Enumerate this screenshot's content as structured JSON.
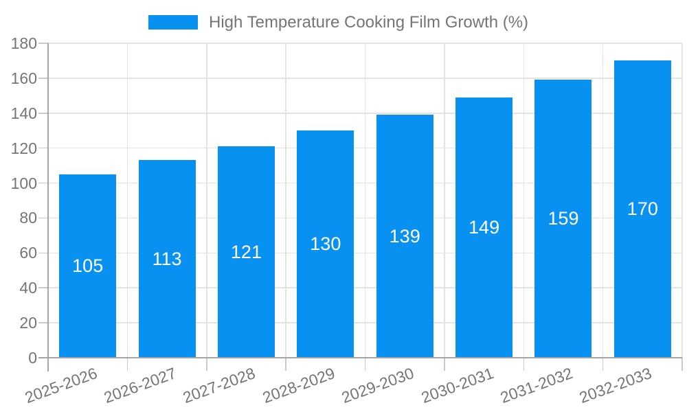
{
  "chart_data": {
    "type": "bar",
    "title": "High Temperature Cooking Film Growth (%)",
    "legend": [
      "High Temperature Cooking Film Growth (%)"
    ],
    "legend_position": "top",
    "categories": [
      "2025-2026",
      "2026-2027",
      "2027-2028",
      "2028-2029",
      "2029-2030",
      "2030-2031",
      "2031-2032",
      "2032-2033"
    ],
    "series": [
      {
        "name": "High Temperature Cooking Film Growth (%)",
        "values": [
          105,
          113,
          121,
          130,
          139,
          149,
          159,
          170
        ]
      }
    ],
    "xlabel": "",
    "ylabel": "",
    "ylim": [
      0,
      180
    ],
    "ytick_step": 20,
    "yticks": [
      0,
      20,
      40,
      60,
      80,
      100,
      120,
      140,
      160,
      180
    ],
    "grid": true,
    "bar_labels_shown": true,
    "colors": {
      "bar": "#0991F2",
      "grid_line": "#E3E3E3",
      "axis_line": "#A5A5A5",
      "tick_mark": "#C9C9C9",
      "tick_label": "#757575",
      "legend_text": "#757575",
      "bar_value_label": "#FFFFFF",
      "background": "#FFFFFF"
    }
  }
}
